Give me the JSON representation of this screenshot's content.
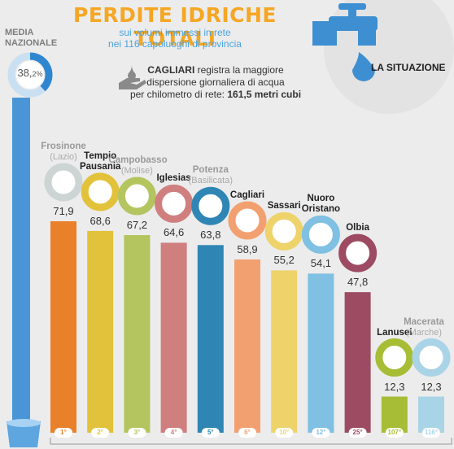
{
  "title": "PERDITE IDRICHE TOTALI",
  "subtitle_lines": [
    "sui volumi immessi in rete",
    "nei 116 capoluoghi di provincia"
  ],
  "note": {
    "city": "CAGLIARI",
    "line1": "registra la maggiore",
    "line2": "dispersione giornaliera di acqua",
    "line3": "per chilometro di rete:",
    "value": "161,5 metri cubi"
  },
  "media": {
    "label_lines": [
      "MEDIA",
      "NAZIONALE"
    ],
    "value_main": "38,",
    "value_decimal": "2%",
    "value": 38.2
  },
  "situazione": "LA SITUAZIONE",
  "chart_data": {
    "type": "bar",
    "title": "PERDITE IDRICHE TOTALI",
    "unit": "%",
    "categories": [
      "Frosinone",
      "Tempio Pausania",
      "Campobasso",
      "Iglesias",
      "Potenza",
      "Cagliari",
      "Sassari",
      "Nuoro Oristano",
      "Olbia",
      "Lanusei",
      "Macerata"
    ],
    "values": [
      71.9,
      68.6,
      67.2,
      64.6,
      63.8,
      58.9,
      55.2,
      54.1,
      47.8,
      12.3,
      12.3
    ],
    "value_labels": [
      "71,9",
      "68,6",
      "67,2",
      "64,6",
      "63,8",
      "58,9",
      "55,2",
      "54,1",
      "47,8",
      "12,3",
      "12,3"
    ],
    "ranks": [
      "1°",
      "2°",
      "3°",
      "4°",
      "5°",
      "6°",
      "10°",
      "12°",
      "25°",
      "107°",
      "116°"
    ],
    "regions": [
      "Lazio",
      "",
      "Molise",
      "",
      "Basilicata",
      "",
      "",
      "",
      "",
      "",
      "Marche"
    ],
    "name_lines": [
      [
        "Frosinone"
      ],
      [
        "Tempio",
        "Pausania"
      ],
      [
        "Campobasso"
      ],
      [
        "Iglesias"
      ],
      [
        "Potenza"
      ],
      [
        "Cagliari"
      ],
      [
        "Sassari"
      ],
      [
        "Nuoro",
        "Oristano"
      ],
      [
        "Olbia"
      ],
      [
        "Lanusei"
      ],
      [
        "Macerata"
      ]
    ],
    "region_lines": [
      "(Lazio)",
      "",
      "(Molise)",
      "",
      "(Basilicata)",
      "",
      "",
      "",
      "",
      "",
      "(Marche)"
    ],
    "colors": [
      "#e8812a",
      "#e2c23a",
      "#b4c55f",
      "#d07f7f",
      "#2f86b4",
      "#f2a070",
      "#eed36b",
      "#7fc0e3",
      "#9c4b62",
      "#a6bd35",
      "#a9d4e7"
    ],
    "ring_colors": [
      "#cdd4d4",
      "#e2c23a",
      "#b4c55f",
      "#d07f7f",
      "#2f86b4",
      "#f2a070",
      "#eed36b",
      "#7fc0e3",
      "#9c4b62",
      "#a6bd35",
      "#a9d4e7"
    ],
    "label_colors": [
      "#9a9a9a",
      "#222222",
      "#9a9a9a",
      "#222222",
      "#9a9a9a",
      "#222222",
      "#222222",
      "#222222",
      "#222222",
      "#222222",
      "#9a9a9a"
    ],
    "media_color": "#4a95d6",
    "ylim": [
      0,
      75
    ]
  }
}
